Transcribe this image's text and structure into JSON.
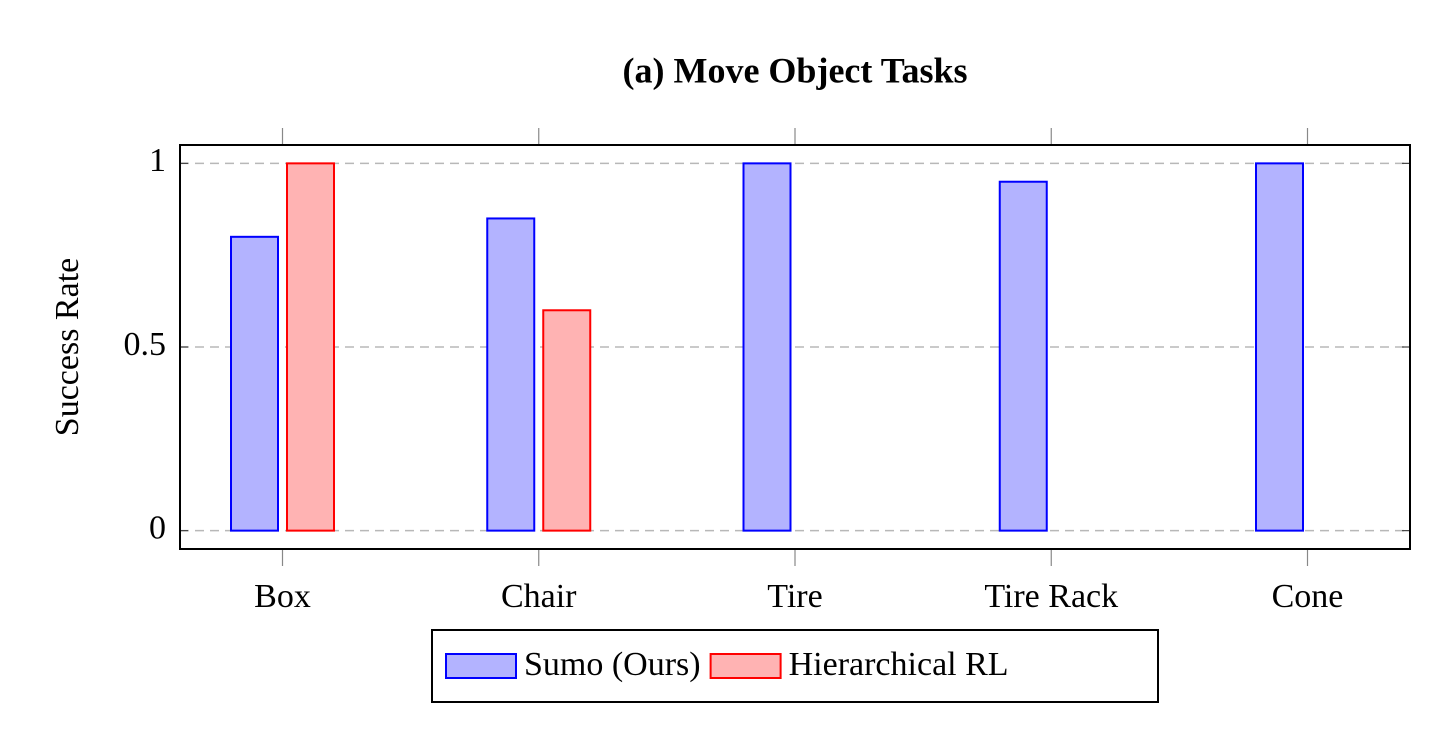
{
  "chart_data": {
    "type": "bar",
    "title": "(a) Move Object Tasks",
    "y_label": "Success Rate",
    "categories": [
      "Box",
      "Chair",
      "Tire",
      "Tire Rack",
      "Cone"
    ],
    "series": [
      {
        "name": "Sumo (Ours)",
        "color": "#0000ff",
        "fill": "#b3b3ff",
        "values": [
          0.8,
          0.85,
          1,
          0.95,
          1
        ]
      },
      {
        "name": "Hierarchical RL",
        "color": "#ff0000",
        "fill": "#ffb3b3",
        "values": [
          1,
          0.6,
          0,
          0,
          0
        ]
      }
    ],
    "ylim": [
      -0.05,
      1.05
    ],
    "yticks": [
      0,
      0.5,
      1
    ],
    "grid": true,
    "legend": "bottom"
  }
}
